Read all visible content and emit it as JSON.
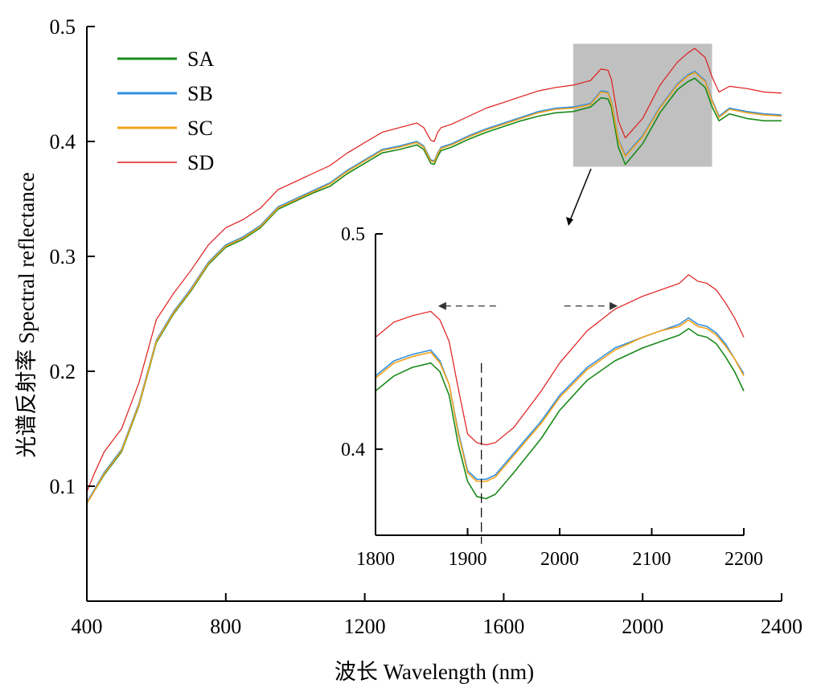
{
  "chart_data": [
    {
      "type": "line",
      "xlabel": "波长 Wavelength (nm)",
      "ylabel": "光谱反射率 Spectral reflectance",
      "xlim": [
        400,
        2400
      ],
      "ylim": [
        0.0,
        0.5
      ],
      "x_ticks": [
        400,
        800,
        1200,
        1600,
        2000,
        2400
      ],
      "x_tick_labels": [
        "400",
        "800",
        "1200",
        "1600",
        "2000",
        "2400"
      ],
      "y_ticks": [
        0.1,
        0.2,
        0.3,
        0.4,
        0.5
      ],
      "y_tick_labels": [
        "0.1",
        "0.2",
        "0.3",
        "0.4",
        "0.5"
      ],
      "legend": "top-left",
      "colors": {
        "SA": "#1a8a1a",
        "SB": "#2f8fe0",
        "SC": "#f5a21b",
        "SD": "#e01b1b"
      },
      "highlight_region": {
        "x": [
          1800,
          2200
        ],
        "y": [
          0.378,
          0.485
        ]
      },
      "series": [
        {
          "name": "SA",
          "x": [
            400,
            420,
            450,
            500,
            550,
            600,
            650,
            700,
            750,
            800,
            850,
            900,
            950,
            1000,
            1050,
            1100,
            1150,
            1200,
            1250,
            1300,
            1350,
            1370,
            1390,
            1400,
            1410,
            1420,
            1450,
            1500,
            1550,
            1600,
            1650,
            1700,
            1750,
            1800,
            1850,
            1880,
            1900,
            1910,
            1930,
            1950,
            2000,
            2050,
            2100,
            2130,
            2150,
            2180,
            2200,
            2220,
            2250,
            2300,
            2350,
            2400
          ],
          "values": [
            0.085,
            0.095,
            0.11,
            0.13,
            0.17,
            0.225,
            0.25,
            0.27,
            0.293,
            0.308,
            0.315,
            0.325,
            0.341,
            0.348,
            0.355,
            0.361,
            0.372,
            0.381,
            0.39,
            0.393,
            0.397,
            0.393,
            0.381,
            0.38,
            0.387,
            0.392,
            0.395,
            0.402,
            0.408,
            0.413,
            0.418,
            0.422,
            0.425,
            0.426,
            0.43,
            0.438,
            0.437,
            0.43,
            0.395,
            0.38,
            0.398,
            0.425,
            0.445,
            0.452,
            0.455,
            0.447,
            0.43,
            0.418,
            0.424,
            0.42,
            0.418,
            0.418
          ]
        },
        {
          "name": "SB",
          "x": [
            400,
            420,
            450,
            500,
            550,
            600,
            650,
            700,
            750,
            800,
            850,
            900,
            950,
            1000,
            1050,
            1100,
            1150,
            1200,
            1250,
            1300,
            1350,
            1370,
            1390,
            1400,
            1410,
            1420,
            1450,
            1500,
            1550,
            1600,
            1650,
            1700,
            1750,
            1800,
            1850,
            1880,
            1900,
            1910,
            1930,
            1950,
            2000,
            2050,
            2100,
            2130,
            2150,
            2180,
            2200,
            2220,
            2250,
            2300,
            2350,
            2400
          ],
          "values": [
            0.086,
            0.096,
            0.112,
            0.132,
            0.172,
            0.227,
            0.252,
            0.272,
            0.295,
            0.31,
            0.317,
            0.327,
            0.343,
            0.35,
            0.357,
            0.364,
            0.375,
            0.384,
            0.393,
            0.396,
            0.4,
            0.396,
            0.384,
            0.383,
            0.39,
            0.395,
            0.398,
            0.405,
            0.411,
            0.416,
            0.421,
            0.426,
            0.429,
            0.43,
            0.433,
            0.444,
            0.443,
            0.435,
            0.402,
            0.388,
            0.405,
            0.43,
            0.45,
            0.458,
            0.461,
            0.453,
            0.436,
            0.422,
            0.429,
            0.426,
            0.424,
            0.423
          ]
        },
        {
          "name": "SC",
          "x": [
            400,
            420,
            450,
            500,
            550,
            600,
            650,
            700,
            750,
            800,
            850,
            900,
            950,
            1000,
            1050,
            1100,
            1150,
            1200,
            1250,
            1300,
            1350,
            1370,
            1390,
            1400,
            1410,
            1420,
            1450,
            1500,
            1550,
            1600,
            1650,
            1700,
            1750,
            1800,
            1850,
            1880,
            1900,
            1910,
            1930,
            1950,
            2000,
            2050,
            2100,
            2130,
            2150,
            2180,
            2200,
            2220,
            2250,
            2300,
            2350,
            2400
          ],
          "values": [
            0.085,
            0.095,
            0.111,
            0.131,
            0.171,
            0.226,
            0.251,
            0.271,
            0.294,
            0.309,
            0.316,
            0.326,
            0.342,
            0.349,
            0.356,
            0.363,
            0.374,
            0.383,
            0.392,
            0.395,
            0.399,
            0.395,
            0.383,
            0.382,
            0.389,
            0.394,
            0.397,
            0.404,
            0.41,
            0.415,
            0.42,
            0.425,
            0.428,
            0.429,
            0.432,
            0.443,
            0.442,
            0.434,
            0.401,
            0.387,
            0.404,
            0.429,
            0.449,
            0.457,
            0.46,
            0.452,
            0.435,
            0.421,
            0.428,
            0.425,
            0.423,
            0.422
          ]
        },
        {
          "name": "SD",
          "x": [
            400,
            420,
            450,
            500,
            550,
            600,
            650,
            700,
            750,
            800,
            850,
            900,
            950,
            1000,
            1050,
            1100,
            1150,
            1200,
            1250,
            1300,
            1350,
            1370,
            1390,
            1400,
            1410,
            1420,
            1450,
            1500,
            1550,
            1600,
            1650,
            1700,
            1750,
            1800,
            1850,
            1880,
            1900,
            1910,
            1930,
            1950,
            2000,
            2050,
            2100,
            2130,
            2150,
            2180,
            2200,
            2220,
            2250,
            2300,
            2350,
            2400
          ],
          "values": [
            0.095,
            0.11,
            0.13,
            0.15,
            0.19,
            0.245,
            0.268,
            0.288,
            0.31,
            0.325,
            0.332,
            0.342,
            0.358,
            0.365,
            0.372,
            0.379,
            0.39,
            0.399,
            0.408,
            0.412,
            0.416,
            0.412,
            0.401,
            0.4,
            0.408,
            0.412,
            0.415,
            0.422,
            0.429,
            0.434,
            0.439,
            0.444,
            0.447,
            0.449,
            0.453,
            0.463,
            0.462,
            0.454,
            0.418,
            0.403,
            0.42,
            0.449,
            0.469,
            0.477,
            0.481,
            0.473,
            0.456,
            0.443,
            0.448,
            0.446,
            0.443,
            0.442
          ]
        }
      ]
    },
    {
      "type": "line",
      "xlim": [
        1800,
        2200
      ],
      "ylim": [
        0.36,
        0.5
      ],
      "x_ticks": [
        1800,
        1900,
        2000,
        2100,
        2200
      ],
      "x_tick_labels": [
        "1800",
        "1900",
        "2000",
        "2100",
        "2200"
      ],
      "y_ticks": [
        0.4,
        0.5
      ],
      "y_tick_labels": [
        "0.4",
        "0.5"
      ],
      "annotations": {
        "dashed_vline_x": 1915,
        "arrow_left": [
          1868,
          1935
        ],
        "arrow_right": [
          2005,
          2063
        ]
      },
      "series": [
        {
          "name": "SA",
          "x": [
            1800,
            1820,
            1840,
            1860,
            1870,
            1880,
            1890,
            1900,
            1910,
            1920,
            1930,
            1950,
            1980,
            2000,
            2030,
            2060,
            2090,
            2110,
            2130,
            2140,
            2150,
            2160,
            2170,
            2180,
            2190,
            2200
          ],
          "values": [
            0.427,
            0.434,
            0.438,
            0.44,
            0.436,
            0.425,
            0.402,
            0.385,
            0.378,
            0.377,
            0.379,
            0.389,
            0.405,
            0.418,
            0.432,
            0.441,
            0.447,
            0.45,
            0.453,
            0.456,
            0.453,
            0.452,
            0.449,
            0.443,
            0.436,
            0.427
          ]
        },
        {
          "name": "SB",
          "x": [
            1800,
            1820,
            1840,
            1860,
            1870,
            1880,
            1890,
            1900,
            1910,
            1920,
            1930,
            1950,
            1980,
            2000,
            2030,
            2060,
            2090,
            2110,
            2130,
            2140,
            2150,
            2160,
            2170,
            2180,
            2190,
            2200
          ],
          "values": [
            0.434,
            0.441,
            0.444,
            0.446,
            0.441,
            0.43,
            0.408,
            0.39,
            0.386,
            0.386,
            0.388,
            0.398,
            0.413,
            0.425,
            0.438,
            0.447,
            0.452,
            0.455,
            0.458,
            0.461,
            0.458,
            0.457,
            0.454,
            0.449,
            0.442,
            0.435
          ]
        },
        {
          "name": "SC",
          "x": [
            1800,
            1820,
            1840,
            1860,
            1870,
            1880,
            1890,
            1900,
            1910,
            1920,
            1930,
            1950,
            1980,
            2000,
            2030,
            2060,
            2090,
            2110,
            2130,
            2140,
            2150,
            2160,
            2170,
            2180,
            2190,
            2200
          ],
          "values": [
            0.433,
            0.44,
            0.443,
            0.445,
            0.44,
            0.43,
            0.407,
            0.389,
            0.385,
            0.385,
            0.387,
            0.397,
            0.412,
            0.424,
            0.437,
            0.446,
            0.452,
            0.455,
            0.457,
            0.46,
            0.457,
            0.456,
            0.453,
            0.448,
            0.442,
            0.434
          ]
        },
        {
          "name": "SD",
          "x": [
            1800,
            1820,
            1840,
            1860,
            1870,
            1880,
            1890,
            1900,
            1910,
            1920,
            1930,
            1950,
            1980,
            2000,
            2030,
            2060,
            2090,
            2110,
            2130,
            2140,
            2150,
            2160,
            2170,
            2180,
            2190,
            2200
          ],
          "values": [
            0.452,
            0.459,
            0.462,
            0.464,
            0.46,
            0.45,
            0.428,
            0.407,
            0.403,
            0.402,
            0.403,
            0.41,
            0.427,
            0.44,
            0.455,
            0.465,
            0.471,
            0.474,
            0.477,
            0.481,
            0.478,
            0.477,
            0.474,
            0.468,
            0.461,
            0.452
          ]
        }
      ]
    }
  ]
}
